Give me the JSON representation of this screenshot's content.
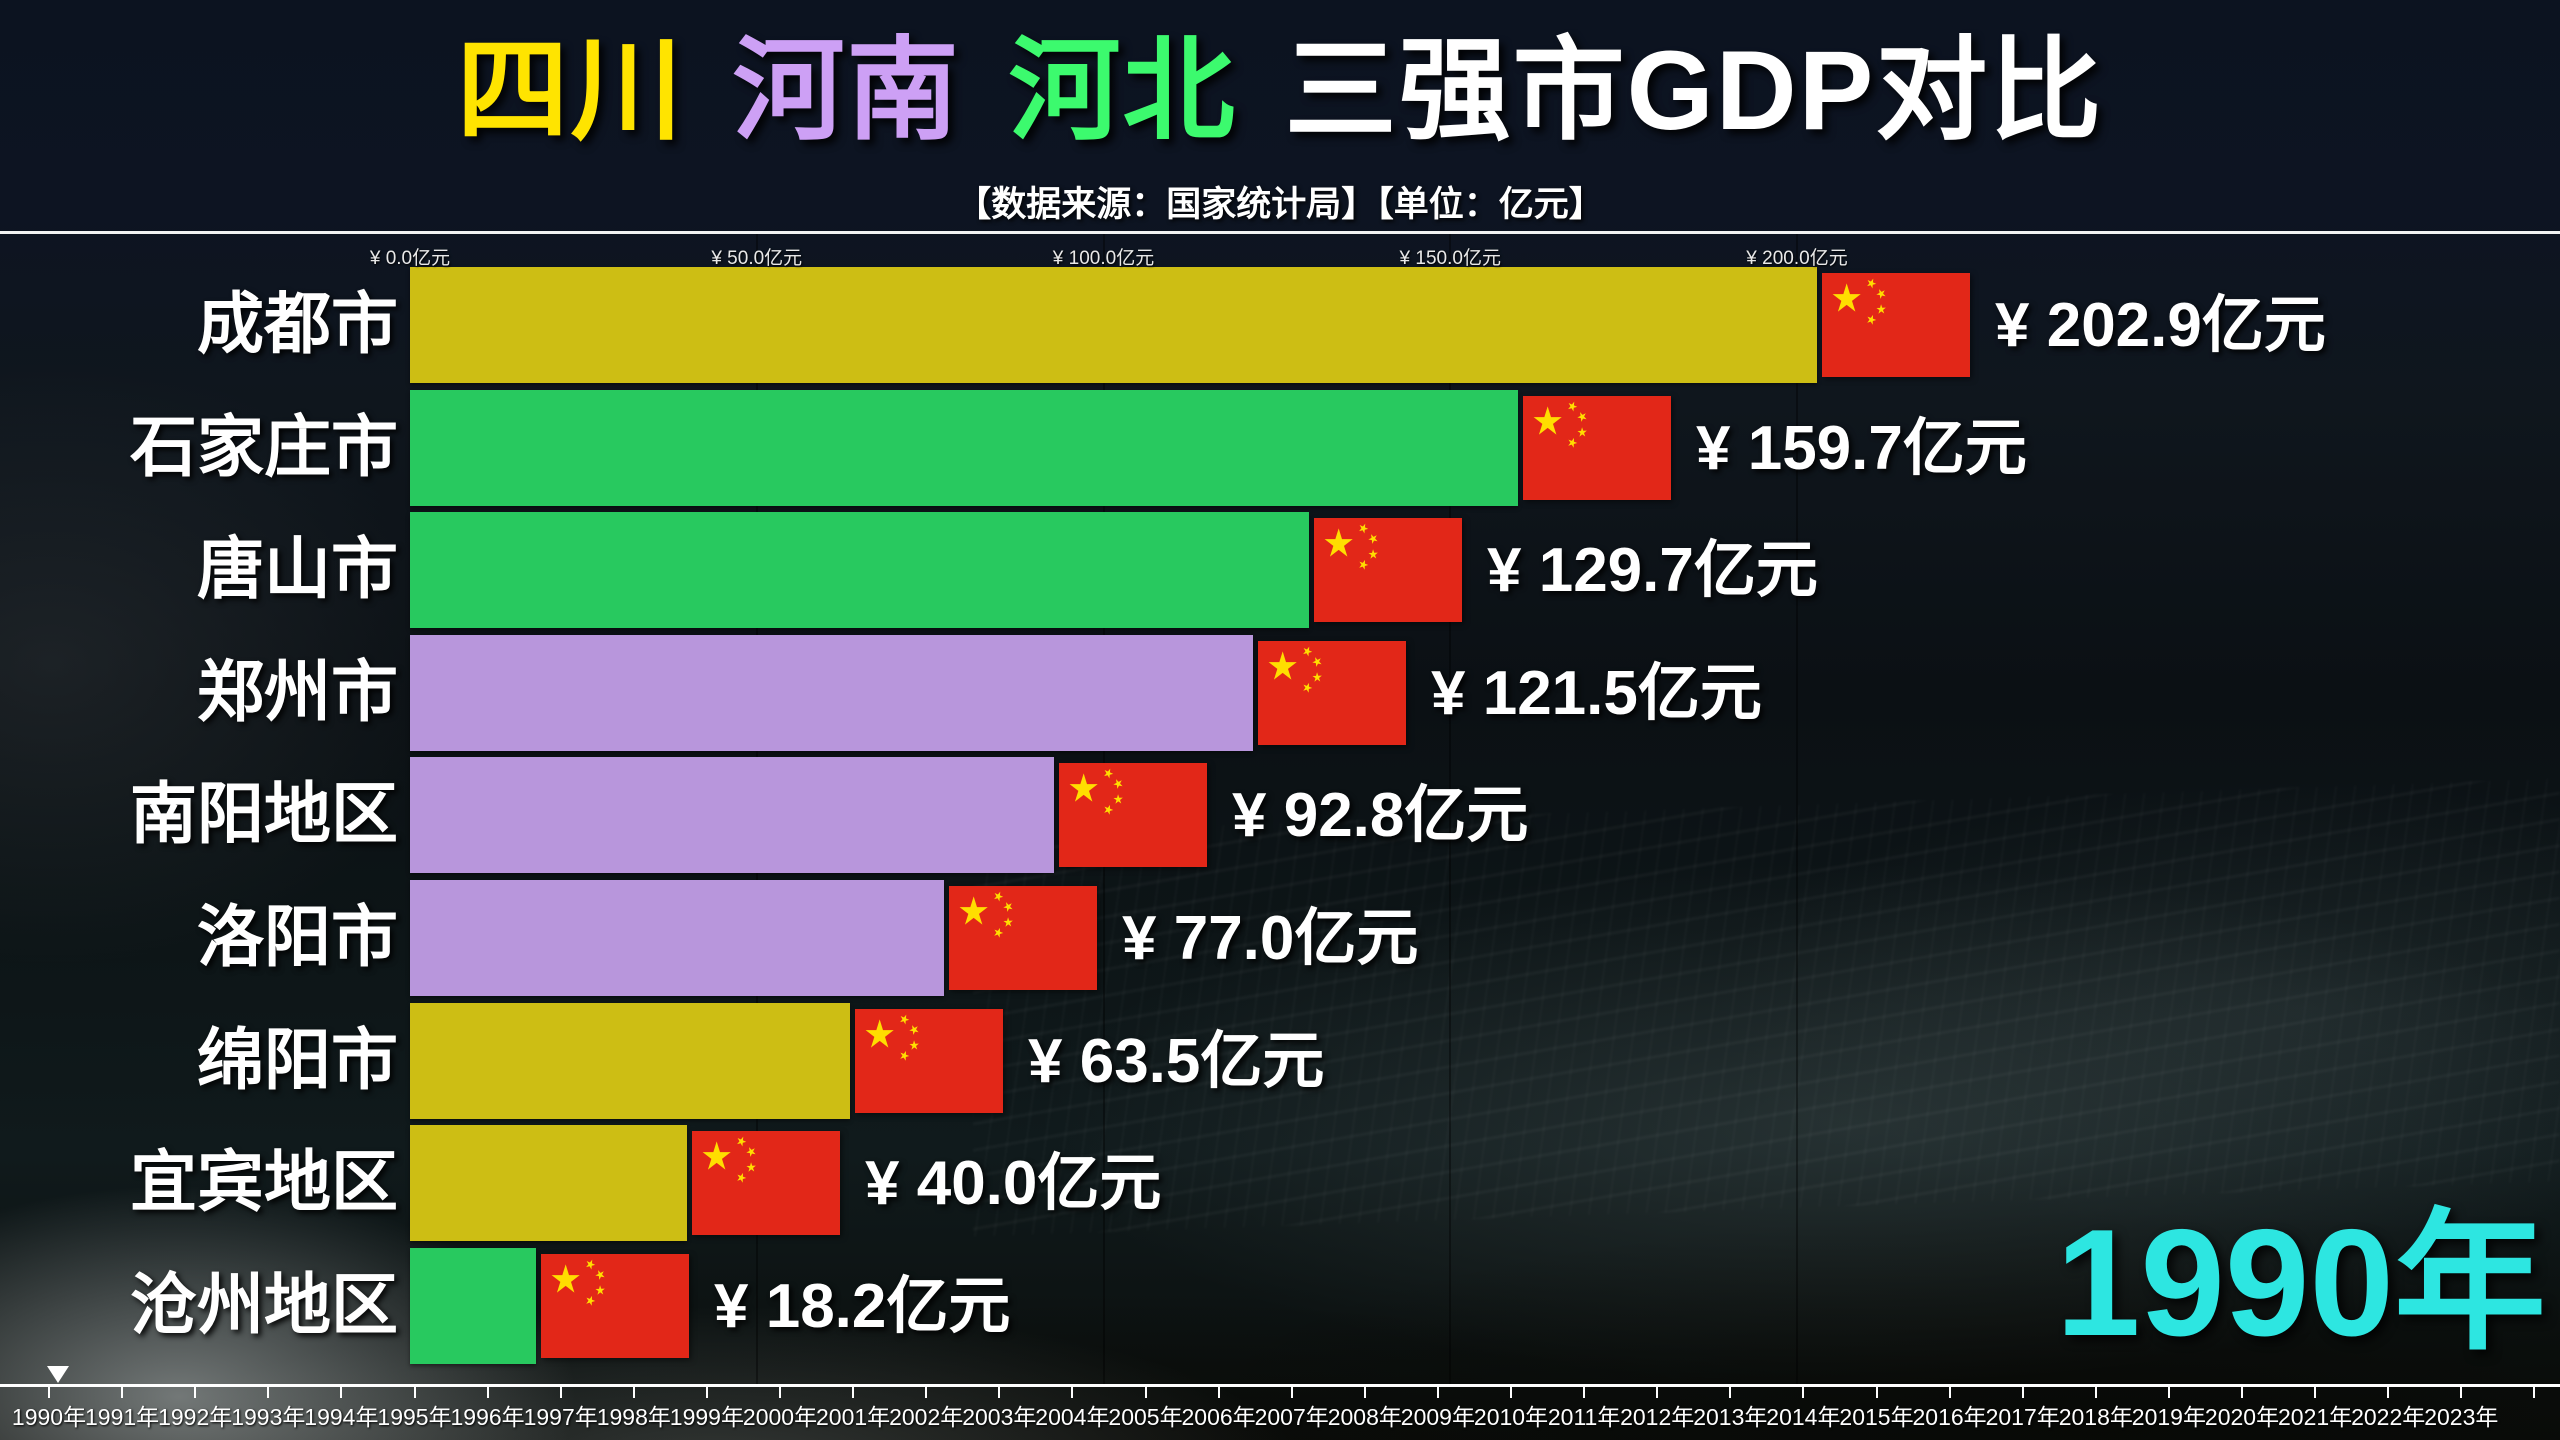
{
  "title": {
    "segments": [
      {
        "text": "四川",
        "color": "#ffe400"
      },
      {
        "text": "河南",
        "color": "#cda0f5"
      },
      {
        "text": "河北",
        "color": "#3cfa6e"
      },
      {
        "text": "三强市GDP对比",
        "color": "#ffffff"
      }
    ]
  },
  "subtitle": "【数据来源：国家统计局】【单位：亿元】",
  "chart_data": {
    "type": "bar",
    "orientation": "horizontal",
    "title": "四川 河南 河北 三强市GDP对比",
    "unit": "亿元",
    "source_note": "数据来源：国家统计局",
    "x_axis": {
      "ticks": [
        {
          "label": "¥ 0.0亿元",
          "value": 0
        },
        {
          "label": "¥ 50.0亿元",
          "value": 50
        },
        {
          "label": "¥ 100.0亿元",
          "value": 100
        },
        {
          "label": "¥ 150.0亿元",
          "value": 150
        },
        {
          "label": "¥ 200.0亿元",
          "value": 200
        }
      ],
      "range": [
        0,
        310
      ],
      "gridlines": [
        50,
        100,
        150,
        200
      ]
    },
    "bars": [
      {
        "city": "成都市",
        "province": "四川",
        "value": 202.9,
        "value_label": "¥ 202.9亿元",
        "color": "#cdbe14"
      },
      {
        "city": "石家庄市",
        "province": "河北",
        "value": 159.7,
        "value_label": "¥ 159.7亿元",
        "color": "#28c95f"
      },
      {
        "city": "唐山市",
        "province": "河北",
        "value": 129.7,
        "value_label": "¥ 129.7亿元",
        "color": "#28c95f"
      },
      {
        "city": "郑州市",
        "province": "河南",
        "value": 121.5,
        "value_label": "¥ 121.5亿元",
        "color": "#b896dc"
      },
      {
        "city": "南阳地区",
        "province": "河南",
        "value": 92.8,
        "value_label": "¥ 92.8亿元",
        "color": "#b896dc"
      },
      {
        "city": "洛阳市",
        "province": "河南",
        "value": 77.0,
        "value_label": "¥ 77.0亿元",
        "color": "#b896dc"
      },
      {
        "city": "绵阳市",
        "province": "四川",
        "value": 63.5,
        "value_label": "¥ 63.5亿元",
        "color": "#cdbe14"
      },
      {
        "city": "宜宾地区",
        "province": "四川",
        "value": 40.0,
        "value_label": "¥ 40.0亿元",
        "color": "#cdbe14"
      },
      {
        "city": "沧州地区",
        "province": "河北",
        "value": 18.2,
        "value_label": "¥ 18.2亿元",
        "color": "#28c95f"
      }
    ],
    "legend": [
      {
        "name": "四川",
        "color": "#ffe400"
      },
      {
        "name": "河南",
        "color": "#cda0f5"
      },
      {
        "name": "河北",
        "color": "#3cfa6e"
      }
    ],
    "bar_icon": "china-flag",
    "current_year": "1990年"
  },
  "flag": {
    "red": "#e22718",
    "star_yellow": "#ffde00"
  },
  "timeline": {
    "years": [
      "1990年",
      "1991年",
      "1992年",
      "1993年",
      "1994年",
      "1995年",
      "1996年",
      "1997年",
      "1998年",
      "1999年",
      "2000年",
      "2001年",
      "2002年",
      "2003年",
      "2004年",
      "2005年",
      "2006年",
      "2007年",
      "2008年",
      "2009年",
      "2010年",
      "2011年",
      "2012年",
      "2013年",
      "2014年",
      "2015年",
      "2016年",
      "2017年",
      "2018年",
      "2019年",
      "2020年",
      "2021年",
      "2022年",
      "2023年"
    ],
    "current": "1990年"
  },
  "year_display": {
    "text": "1990年",
    "color": "#2de6e1"
  }
}
